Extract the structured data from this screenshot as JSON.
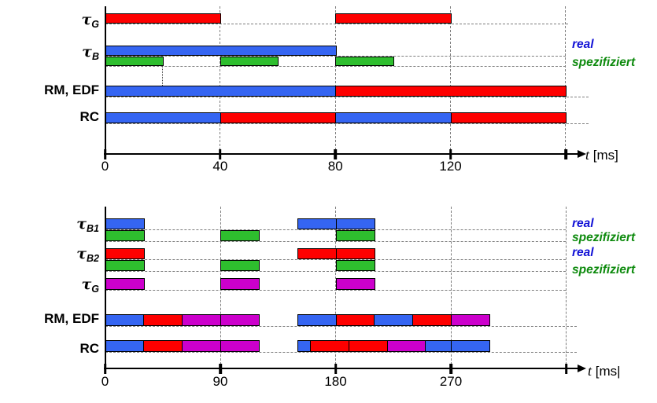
{
  "colors": {
    "blue": "#3565f2",
    "red": "#fe0000",
    "green": "#2ebe2e",
    "magenta": "#cc00cc",
    "legend_blue": "#1212d6",
    "legend_green": "#0d8a0d"
  },
  "chart_data": [
    {
      "type": "gantt",
      "title": "Scheduling with real vs specified execution times (tasks tau_G, tau_B)",
      "time_unit": "ms",
      "axis": {
        "var": "t",
        "unit": "[ms]",
        "ticks": [
          0,
          40,
          80,
          120
        ],
        "t_end": 160
      },
      "rows": [
        {
          "label": "τ_G",
          "lanes": [
            {
              "bars": [
                [
                  0,
                  40,
                  "red"
                ],
                [
                  80,
                  120,
                  "red"
                ]
              ]
            }
          ]
        },
        {
          "label": "τ_B",
          "lanes": [
            {
              "bars": [
                [
                  0,
                  80,
                  "blue"
                ]
              ]
            },
            {
              "bars": [
                [
                  0,
                  20,
                  "green"
                ],
                [
                  40,
                  60,
                  "green"
                ],
                [
                  80,
                  100,
                  "green"
                ]
              ]
            }
          ]
        },
        {
          "label": "RM, EDF",
          "lanes": [
            {
              "bars": [
                [
                  0,
                  80,
                  "blue"
                ],
                [
                  80,
                  160,
                  "red"
                ]
              ]
            }
          ]
        },
        {
          "label": "RC",
          "lanes": [
            {
              "bars": [
                [
                  0,
                  40,
                  "blue"
                ],
                [
                  40,
                  80,
                  "red"
                ],
                [
                  80,
                  120,
                  "blue"
                ],
                [
                  120,
                  160,
                  "red"
                ]
              ]
            }
          ]
        }
      ],
      "marker": {
        "t": 20
      },
      "legend": [
        {
          "label": "real",
          "color": "legend_blue"
        },
        {
          "label": "spezifiziert",
          "color": "legend_green"
        }
      ]
    },
    {
      "type": "gantt",
      "title": "Scheduling with real vs specified execution times (tasks tau_B1, tau_B2, tau_G)",
      "time_unit": "ms",
      "axis": {
        "var": "t",
        "unit": "[ms|",
        "ticks": [
          0,
          90,
          180,
          270
        ],
        "t_end": 360
      },
      "rows": [
        {
          "label": "τ_B1",
          "lanes": [
            {
              "bars": [
                [
                  0,
                  30,
                  "blue"
                ],
                [
                  150,
                  180,
                  "blue"
                ],
                [
                  180,
                  210,
                  "blue"
                ]
              ]
            },
            {
              "bars": [
                [
                  0,
                  30,
                  "green"
                ],
                [
                  90,
                  120,
                  "green"
                ],
                [
                  180,
                  210,
                  "green"
                ]
              ]
            }
          ]
        },
        {
          "label": "τ_B2",
          "lanes": [
            {
              "bars": [
                [
                  0,
                  30,
                  "red"
                ],
                [
                  150,
                  180,
                  "red"
                ],
                [
                  180,
                  210,
                  "red"
                ]
              ]
            },
            {
              "bars": [
                [
                  0,
                  30,
                  "green"
                ],
                [
                  90,
                  120,
                  "green"
                ],
                [
                  180,
                  210,
                  "green"
                ]
              ]
            }
          ]
        },
        {
          "label": "τ_G",
          "lanes": [
            {
              "bars": [
                [
                  0,
                  30,
                  "magenta"
                ],
                [
                  90,
                  120,
                  "magenta"
                ],
                [
                  180,
                  210,
                  "magenta"
                ]
              ]
            }
          ]
        },
        {
          "label": "RM, EDF",
          "lanes": [
            {
              "bars": [
                [
                  0,
                  30,
                  "blue"
                ],
                [
                  30,
                  60,
                  "red"
                ],
                [
                  60,
                  90,
                  "magenta"
                ],
                [
                  90,
                  120,
                  "magenta"
                ],
                [
                  150,
                  180,
                  "blue"
                ],
                [
                  180,
                  210,
                  "red"
                ],
                [
                  210,
                  240,
                  "blue"
                ],
                [
                  240,
                  270,
                  "red"
                ],
                [
                  270,
                  300,
                  "magenta"
                ]
              ]
            }
          ]
        },
        {
          "label": "RC",
          "lanes": [
            {
              "bars": [
                [
                  0,
                  30,
                  "blue"
                ],
                [
                  30,
                  60,
                  "red"
                ],
                [
                  60,
                  90,
                  "magenta"
                ],
                [
                  90,
                  120,
                  "magenta"
                ],
                [
                  150,
                  160,
                  "blue"
                ],
                [
                  160,
                  190,
                  "red"
                ],
                [
                  190,
                  220,
                  "red"
                ],
                [
                  220,
                  250,
                  "magenta"
                ],
                [
                  250,
                  270,
                  "blue"
                ],
                [
                  270,
                  300,
                  "blue"
                ]
              ]
            }
          ]
        }
      ],
      "legend": [
        {
          "label": "real",
          "color": "legend_blue"
        },
        {
          "label": "spezifiziert",
          "color": "legend_green"
        },
        {
          "label": "real",
          "color": "legend_blue"
        },
        {
          "label": "spezifiziert",
          "color": "legend_green"
        }
      ]
    }
  ]
}
